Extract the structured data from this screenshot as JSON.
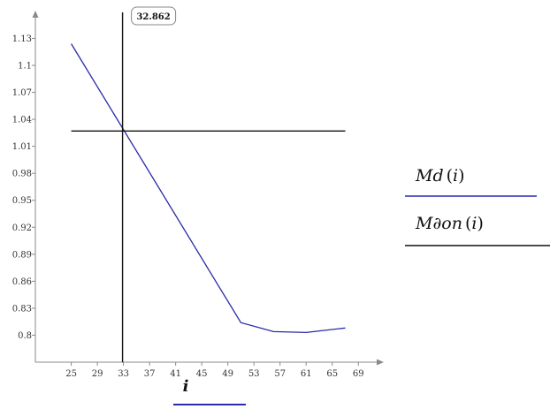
{
  "chart_data": {
    "type": "line",
    "x_ticks": [
      "25",
      "29",
      "33",
      "37",
      "41",
      "45",
      "49",
      "53",
      "57",
      "61",
      "65",
      "69"
    ],
    "y_ticks": [
      "0.8",
      "0.83",
      "0.86",
      "0.89",
      "0.92",
      "0.95",
      "0.98",
      "1.01",
      "1.04",
      "1.07",
      "1.1",
      "1.13"
    ],
    "xlim": [
      19.5,
      71
    ],
    "ylim": [
      0.77,
      1.155
    ],
    "xlabel": "i",
    "series": [
      {
        "name": "Md(i)",
        "color": "#2a2aaa",
        "x": [
          25,
          51,
          56,
          61,
          67
        ],
        "y": [
          1.124,
          0.814,
          0.804,
          0.803,
          0.808
        ]
      },
      {
        "name": "M∂on(i)",
        "color": "#111111",
        "x": [
          25,
          67
        ],
        "y": [
          1.027,
          1.027
        ]
      }
    ],
    "cursor": {
      "x": 32.862,
      "label": "32.862"
    },
    "legend_position": "right",
    "grid": false
  }
}
